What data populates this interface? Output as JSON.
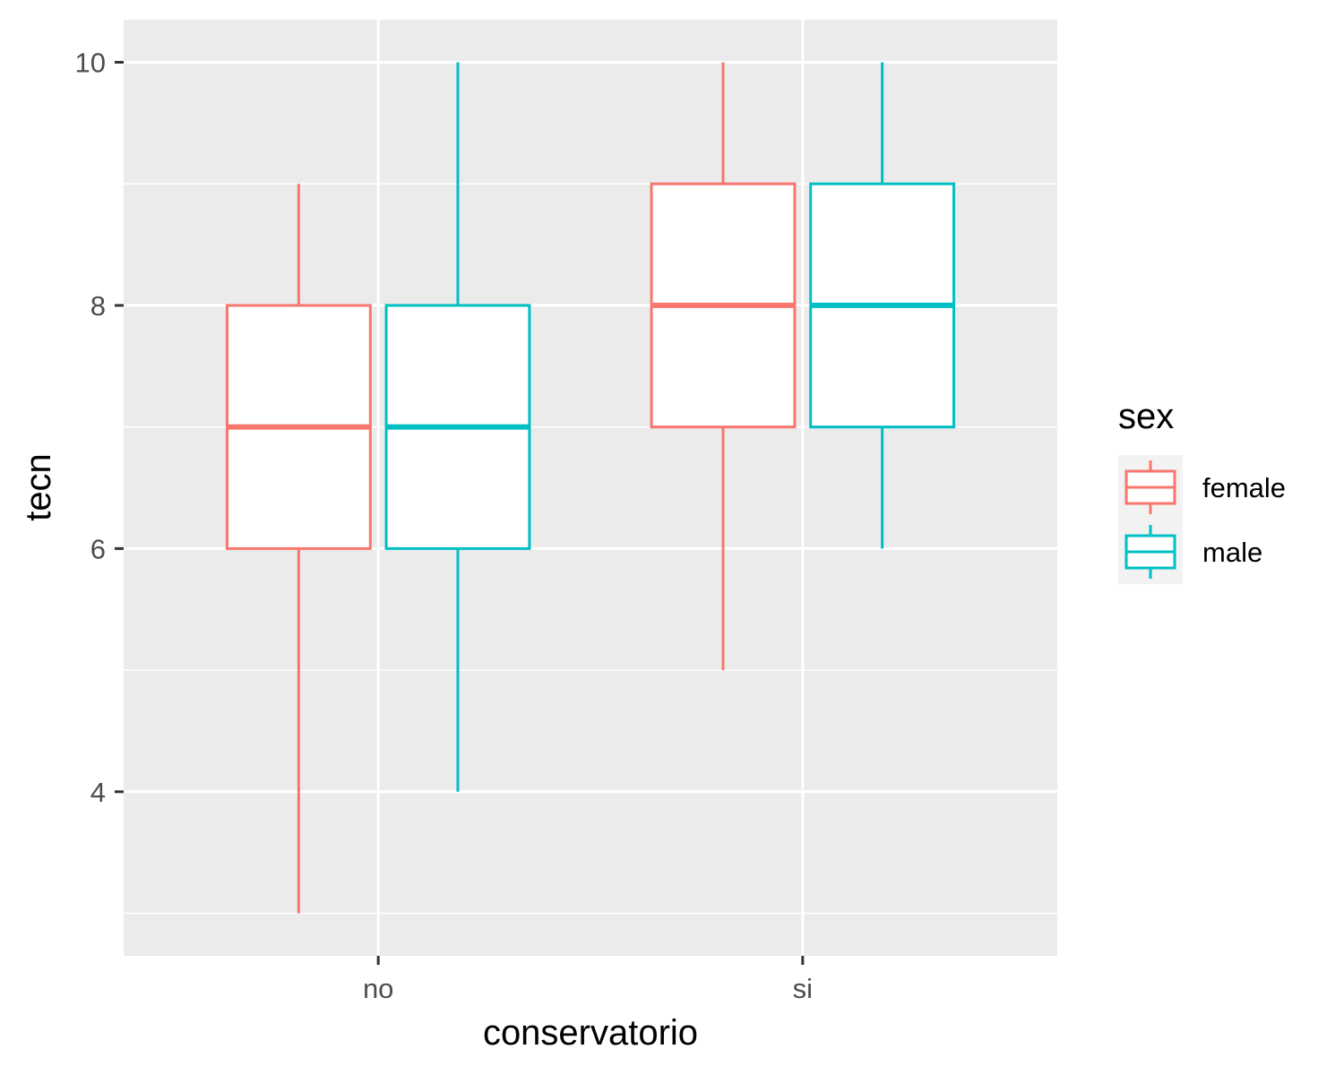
{
  "chart_data": {
    "type": "boxplot",
    "xlabel": "conservatorio",
    "ylabel": "tecn",
    "categories": [
      "no",
      "si"
    ],
    "y_ticks": [
      4,
      6,
      8,
      10
    ],
    "ylim": [
      2.65,
      10.35
    ],
    "grid": true,
    "legend": {
      "title": "sex",
      "position": "right"
    },
    "series": [
      {
        "name": "female",
        "color": "#F8766D",
        "boxes": [
          {
            "category": "no",
            "lower_whisker": 3,
            "q1": 6,
            "median": 7,
            "q3": 8,
            "upper_whisker": 9
          },
          {
            "category": "si",
            "lower_whisker": 5,
            "q1": 7,
            "median": 8,
            "q3": 9,
            "upper_whisker": 10
          }
        ]
      },
      {
        "name": "male",
        "color": "#00BFC4",
        "boxes": [
          {
            "category": "no",
            "lower_whisker": 4,
            "q1": 6,
            "median": 7,
            "q3": 8,
            "upper_whisker": 10
          },
          {
            "category": "si",
            "lower_whisker": 6,
            "q1": 7,
            "median": 8,
            "q3": 9,
            "upper_whisker": 10
          }
        ]
      }
    ]
  }
}
